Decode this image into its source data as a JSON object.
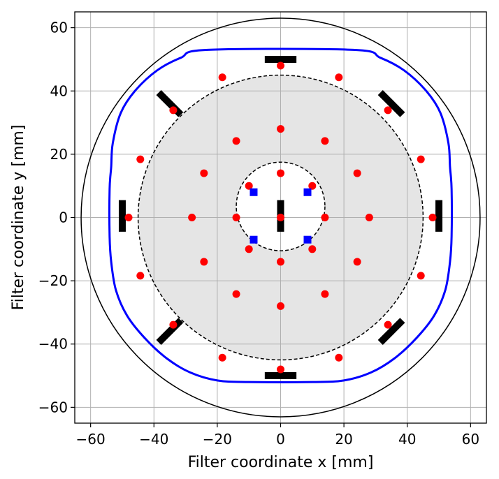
{
  "chart_data": {
    "type": "scatter",
    "title": "",
    "xlabel": "Filter coordinate  x [mm]",
    "ylabel": "Filter coordinate  y [mm]",
    "xlim": [
      -65,
      65
    ],
    "ylim": [
      -65,
      65
    ],
    "xticks": [
      -60,
      -40,
      -20,
      0,
      20,
      40,
      60
    ],
    "yticks": [
      -60,
      -40,
      -20,
      0,
      20,
      40,
      60
    ],
    "xtick_labels": [
      "−60",
      "−40",
      "−20",
      "0",
      "20",
      "40",
      "60"
    ],
    "ytick_labels": [
      "−60",
      "−40",
      "−20",
      "0",
      "20",
      "40",
      "60"
    ],
    "grid": true,
    "colors": {
      "red_points": "#ff0000",
      "blue_points": "#0000ff",
      "outline": "#0000ff",
      "bars": "#000000",
      "fill": "#e5e5e5"
    },
    "circles": [
      {
        "kind": "outer-circle",
        "cx": 0,
        "cy": 0,
        "r": 63,
        "style": "solid"
      },
      {
        "kind": "shaded-circle",
        "cx": 0,
        "cy": 0,
        "r": 45,
        "style": "dashed"
      },
      {
        "kind": "inner-circle",
        "cx": 0,
        "cy": 3.5,
        "r": 14,
        "style": "dashed"
      }
    ],
    "outline_path": [
      [
        -23,
        53
      ],
      [
        23,
        53
      ],
      [
        31.5,
        50.5
      ],
      [
        39,
        46.5
      ],
      [
        46,
        40
      ],
      [
        50.5,
        33
      ],
      [
        53,
        23.5
      ],
      [
        53.5,
        16
      ],
      [
        54,
        9
      ],
      [
        54,
        -6
      ],
      [
        53.5,
        -14
      ],
      [
        52,
        -23
      ],
      [
        48.5,
        -31
      ],
      [
        43,
        -38
      ],
      [
        36,
        -44.5
      ],
      [
        28.5,
        -49
      ],
      [
        20,
        -51.5
      ],
      [
        10,
        -52
      ],
      [
        -10,
        -52
      ],
      [
        -20,
        -51.5
      ],
      [
        -28.5,
        -49
      ],
      [
        -36,
        -44.5
      ],
      [
        -43,
        -38
      ],
      [
        -48.5,
        -31
      ],
      [
        -52,
        -23
      ],
      [
        -53.5,
        -14
      ],
      [
        -54,
        -6
      ],
      [
        -54,
        9
      ],
      [
        -53.5,
        16
      ],
      [
        -53,
        23.5
      ],
      [
        -50.5,
        33
      ],
      [
        -46,
        40
      ],
      [
        -39,
        46.5
      ],
      [
        -31.5,
        50.5
      ]
    ],
    "bars": [
      {
        "x1": -5,
        "y1": 50,
        "x2": 5,
        "y2": 50
      },
      {
        "x1": -5,
        "y1": -50,
        "x2": 5,
        "y2": -50
      },
      {
        "x1": -50,
        "y1": -4.5,
        "x2": -50,
        "y2": 5.5
      },
      {
        "x1": 50,
        "y1": -4.5,
        "x2": 50,
        "y2": 5.5
      },
      {
        "x1": 0,
        "y1": -4.5,
        "x2": 0,
        "y2": 5.5
      },
      {
        "x1": -38.5,
        "y1": 39.5,
        "x2": -31.5,
        "y2": 32.5
      },
      {
        "x1": 31.5,
        "y1": 39.5,
        "x2": 38.5,
        "y2": 32.5
      },
      {
        "x1": -38.5,
        "y1": -39.5,
        "x2": -31.5,
        "y2": -32.5
      },
      {
        "x1": 31.5,
        "y1": -39.5,
        "x2": 38.5,
        "y2": -32.5
      }
    ],
    "series": [
      {
        "marker": "circle",
        "color": "#ff0000",
        "points": [
          [
            0,
            48
          ],
          [
            18.4,
            44.3
          ],
          [
            33.9,
            33.9
          ],
          [
            44.3,
            18.4
          ],
          [
            48,
            0
          ],
          [
            44.3,
            -18.4
          ],
          [
            33.9,
            -33.9
          ],
          [
            18.4,
            -44.3
          ],
          [
            0,
            -48
          ],
          [
            -18.4,
            -44.3
          ],
          [
            -33.9,
            -33.9
          ],
          [
            -44.3,
            -18.4
          ],
          [
            -48,
            0
          ],
          [
            -44.3,
            18.4
          ],
          [
            -33.9,
            33.9
          ],
          [
            -18.4,
            44.3
          ],
          [
            0,
            28
          ],
          [
            14,
            24.2
          ],
          [
            24.2,
            14
          ],
          [
            28,
            0
          ],
          [
            24.2,
            -14
          ],
          [
            14,
            -24.2
          ],
          [
            0,
            -28
          ],
          [
            -14,
            -24.2
          ],
          [
            -24.2,
            -14
          ],
          [
            -28,
            0
          ],
          [
            -24.2,
            14
          ],
          [
            -14,
            24.2
          ],
          [
            0,
            14
          ],
          [
            0,
            -14
          ],
          [
            -14,
            0
          ],
          [
            14,
            0
          ],
          [
            -10,
            10
          ],
          [
            10,
            10
          ],
          [
            -10,
            -10
          ],
          [
            10,
            -10
          ],
          [
            0,
            0
          ]
        ]
      },
      {
        "marker": "square",
        "color": "#0000ff",
        "points": [
          [
            -8.5,
            8
          ],
          [
            8.5,
            8
          ],
          [
            -8.5,
            -7
          ],
          [
            8.5,
            -7
          ]
        ]
      }
    ]
  }
}
